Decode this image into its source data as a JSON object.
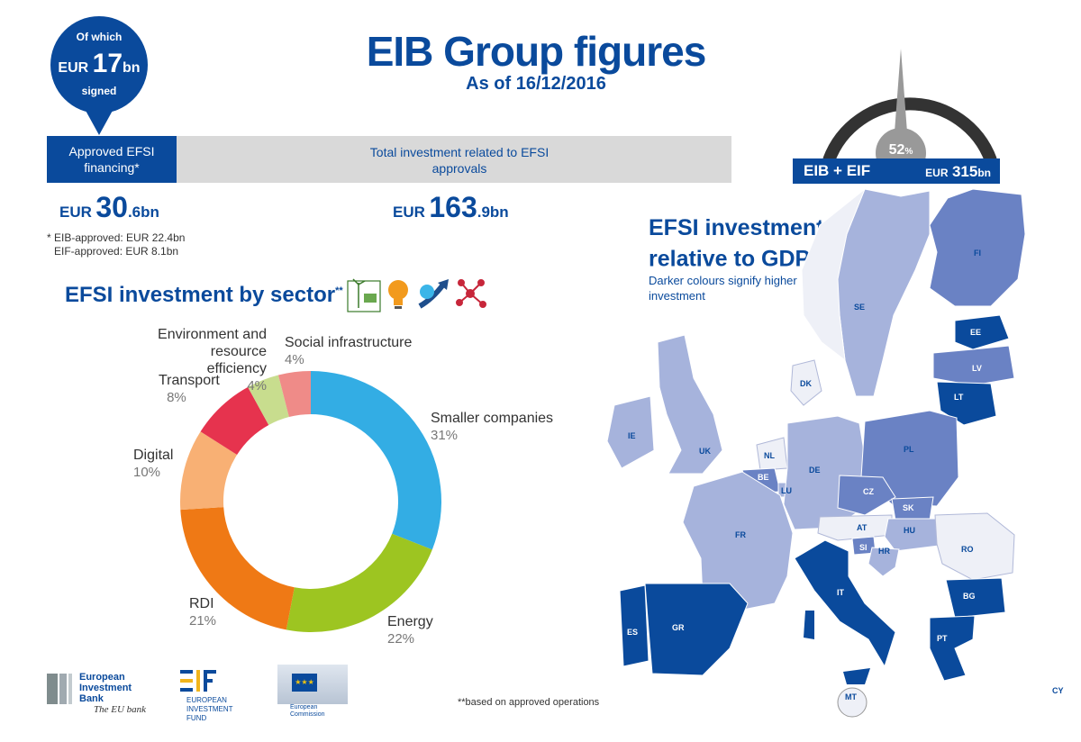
{
  "header": {
    "title": "EIB Group figures",
    "subtitle": "As of 16/12/2016"
  },
  "bubble": {
    "line1": "Of which",
    "currency": "EUR",
    "amount_main": "17",
    "amount_unit": "bn",
    "line3": "signed"
  },
  "band": {
    "left_label": "Approved EFSI financing*",
    "right_label": "Total investment related to EFSI approvals"
  },
  "figures": {
    "approved": {
      "currency": "EUR",
      "main": "30",
      "tail": ".6bn"
    },
    "total": {
      "currency": "EUR",
      "main": "163",
      "tail": ".9bn"
    }
  },
  "footnote": {
    "line1": "* EIB-approved: EUR 22.4bn",
    "line2": "EIF-approved: EUR 8.1bn"
  },
  "sector": {
    "title": "EFSI investment by sector",
    "title_sup": "**",
    "icons": [
      "wind-solar-icon",
      "lightbulb-icon",
      "growth-arrow-icon",
      "network-icon"
    ]
  },
  "gauge": {
    "percent": "52",
    "percent_sign": "%",
    "percent_value": 52,
    "left_label": "EIB + EIF",
    "right_currency": "EUR",
    "right_amount": "315",
    "right_unit": "bn"
  },
  "gdp": {
    "title_line1": "EFSI investment",
    "title_line2": "relative to GDP",
    "title_sup": "**",
    "subtitle_line1": "Darker colours signify higher",
    "subtitle_line2": "investment",
    "countries": [
      "FI",
      "SE",
      "EE",
      "LV",
      "LT",
      "DK",
      "IE",
      "UK",
      "NL",
      "BE",
      "LU",
      "DE",
      "PL",
      "CZ",
      "SK",
      "AT",
      "HU",
      "SI",
      "HR",
      "FR",
      "RO",
      "IT",
      "BG",
      "PT",
      "ES",
      "GR",
      "MT",
      "CY"
    ]
  },
  "footer": {
    "eib_name_l1": "European",
    "eib_name_l2": "Investment",
    "eib_name_l3": "Bank",
    "eib_tagline": "The EU bank",
    "eif_l1": "EUROPEAN",
    "eif_l2": "INVESTMENT",
    "eif_l3": "FUND",
    "ec_l1": "European",
    "ec_l2": "Commission",
    "note": "**based on approved operations"
  },
  "chart_data": {
    "type": "pie",
    "title": "EFSI investment by sector",
    "categories": [
      "Smaller companies",
      "Energy",
      "RDI",
      "Digital",
      "Transport",
      "Environment and resource efficiency",
      "Social infrastructure"
    ],
    "values": [
      31,
      22,
      21,
      10,
      8,
      4,
      4
    ],
    "value_labels": [
      "31%",
      "22%",
      "21%",
      "10%",
      "8%",
      "4%",
      "4%"
    ],
    "colors": [
      "#33ade4",
      "#9dc521",
      "#ef7915",
      "#f8b074",
      "#e6334e",
      "#c8dd8e",
      "#ef8b88"
    ],
    "donut": true,
    "legend": "none"
  }
}
